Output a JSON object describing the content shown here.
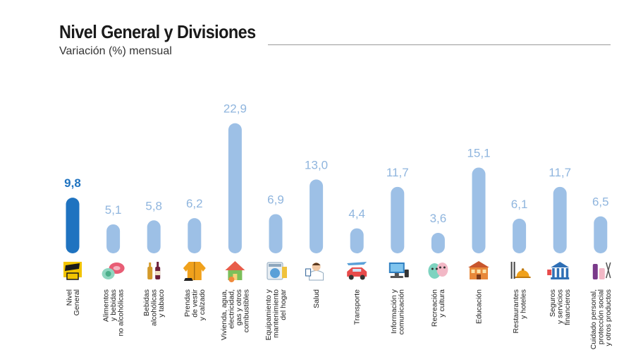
{
  "header": {
    "title": "Nivel General y Divisiones",
    "subtitle": "Variación (%) mensual"
  },
  "colors": {
    "highlight_bar": "#1f73c0",
    "highlight_label": "#1f73c0",
    "bar": "#9dc0e6",
    "label": "#8fb5de"
  },
  "chart_data": {
    "type": "bar",
    "title": "Nivel General y Divisiones",
    "subtitle": "Variación (%) mensual",
    "ylabel": "",
    "xlabel": "",
    "ylim": [
      0,
      25
    ],
    "grid": false,
    "highlight_index": 0,
    "categories": [
      [
        "Nivel",
        "General"
      ],
      [
        "Alimentos",
        "y bebidas",
        "no alcohólicas"
      ],
      [
        "Bebidas",
        "alcohólicas",
        "y tabaco"
      ],
      [
        "Prendas",
        "de vestir",
        "y calzado"
      ],
      [
        "Vivienda, agua,",
        "electricidad,",
        "gas y otros",
        "combustibles"
      ],
      [
        "Equipamiento y",
        "mantenimiento",
        "del hogar"
      ],
      [
        "Salud"
      ],
      [
        "Transporte"
      ],
      [
        "Información y",
        "comunicación"
      ],
      [
        "Recreación",
        "y cultura"
      ],
      [
        "Educación"
      ],
      [
        "Restaurantes",
        "y hoteles"
      ],
      [
        "Seguros",
        "y servicios",
        "financieros"
      ],
      [
        "Cuidado personal,",
        "protección social",
        "y otros productos"
      ]
    ],
    "values": [
      9.8,
      5.1,
      5.8,
      6.2,
      22.9,
      6.9,
      13.0,
      4.4,
      11.7,
      3.6,
      15.1,
      6.1,
      11.7,
      6.5
    ],
    "value_labels": [
      "9,8",
      "5,1",
      "5,8",
      "6,2",
      "22,9",
      "6,9",
      "13,0",
      "4,4",
      "11,7",
      "3,6",
      "15,1",
      "6,1",
      "11,7",
      "6,5"
    ],
    "icons": [
      "ipc-ba-logo-icon",
      "food-icon",
      "bottles-icon",
      "jacket-icon",
      "house-icon",
      "washing-machine-icon",
      "doctor-icon",
      "car-plane-icon",
      "computer-icon",
      "theater-masks-icon",
      "school-building-icon",
      "cutlery-icon",
      "bank-icon",
      "personal-care-icon"
    ]
  }
}
